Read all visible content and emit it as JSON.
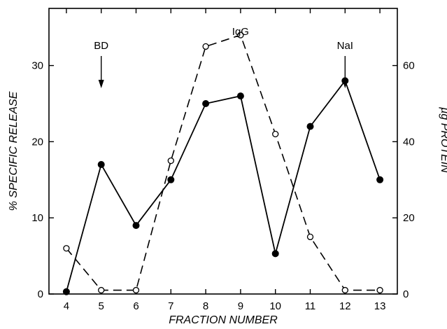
{
  "chart_data": {
    "type": "line",
    "title": "",
    "xlabel": "FRACTION NUMBER",
    "ylabel": "% SPECIFIC RELEASE",
    "y2label": "µg PROTEIN",
    "x": [
      4,
      5,
      6,
      7,
      8,
      9,
      10,
      11,
      12,
      13
    ],
    "xlim": [
      3.5,
      13.5
    ],
    "ylim": [
      0,
      37.5
    ],
    "y2lim": [
      0,
      75
    ],
    "xticks": [
      "4",
      "5",
      "6",
      "7",
      "8",
      "9",
      "10",
      "11",
      "12",
      "13"
    ],
    "yticks": [
      "0",
      "10",
      "20",
      "30"
    ],
    "y2ticks": [
      "0",
      "20",
      "40",
      "60"
    ],
    "grid": false,
    "legend": "none",
    "series": [
      {
        "axis": "left",
        "style": "solid line, filled circles",
        "values": [
          0.3,
          17,
          9,
          15,
          25,
          26,
          5.3,
          22,
          28,
          15
        ]
      },
      {
        "axis": "right",
        "style": "dashed line, open circles",
        "values": [
          12,
          1,
          1,
          35,
          65,
          68,
          42,
          15,
          1,
          1
        ]
      }
    ],
    "annotations": [
      {
        "text": "BD",
        "x": 5,
        "arrow": true
      },
      {
        "text": "IgG",
        "x": 9,
        "arrow": false
      },
      {
        "text": "NaI",
        "x": 12,
        "arrow": true
      }
    ]
  }
}
